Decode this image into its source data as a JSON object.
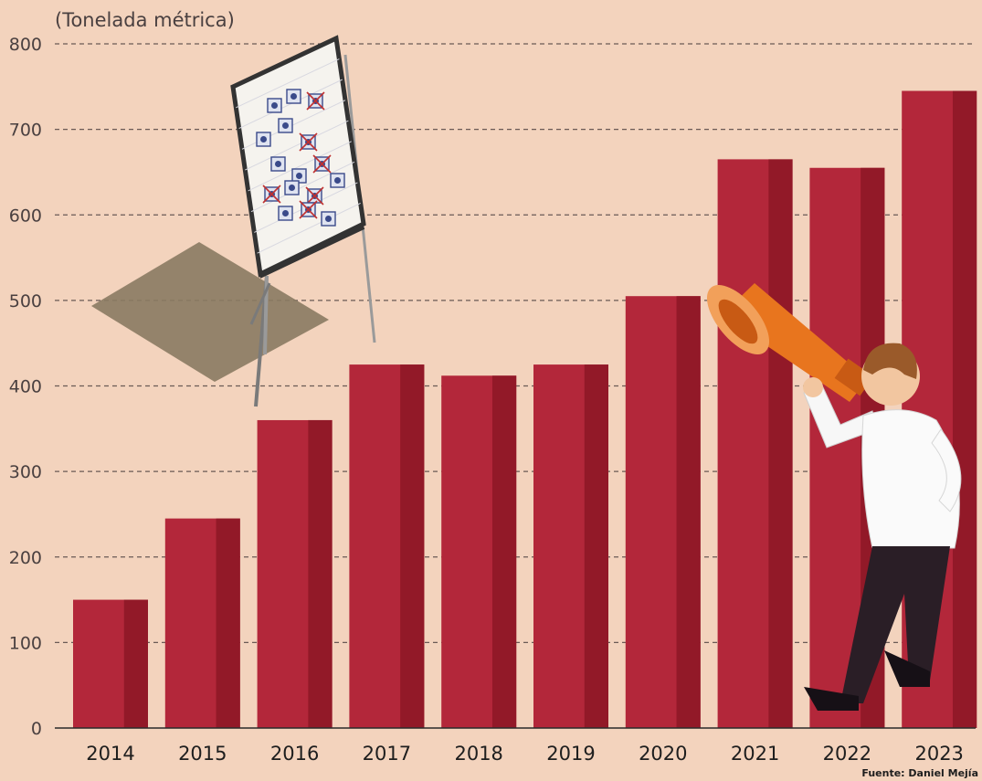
{
  "colors": {
    "background": "#f3d3bd",
    "bar": "#b3273a",
    "bar_shade": "#8c1726",
    "grid": "#6a5a55",
    "axis_text": "#4a4040",
    "year_text": "#1e1e1e"
  },
  "illustrations": [
    "flipchart-organigram",
    "man-with-megaphone"
  ],
  "chart_data": {
    "type": "bar",
    "unit_label": "(Tonelada métrica)",
    "source": "Fuente: Daniel Mejía",
    "categories": [
      "2014",
      "2015",
      "2016",
      "2017",
      "2018",
      "2019",
      "2020",
      "2021",
      "2022",
      "2023"
    ],
    "values": [
      150,
      245,
      360,
      425,
      412,
      425,
      505,
      665,
      655,
      745
    ],
    "ylim": [
      0,
      800
    ],
    "yticks": [
      "0",
      "100",
      "200",
      "300",
      "400",
      "500",
      "600",
      "700",
      "800"
    ],
    "grid": true,
    "legend": false
  }
}
